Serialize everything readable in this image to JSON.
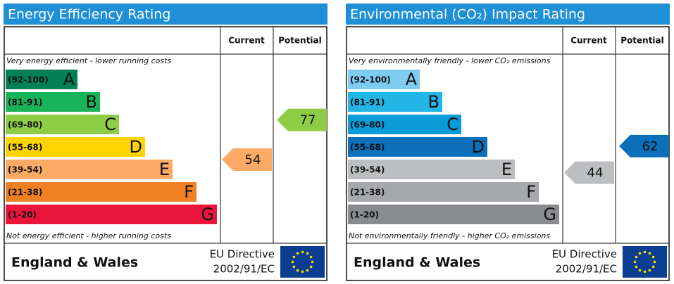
{
  "panels": [
    {
      "title": "Energy Efficiency Rating",
      "headers": [
        "Current",
        "Potential"
      ],
      "top_note": "Very energy efficient - lower running costs",
      "bottom_note": "Not energy efficient - higher running costs",
      "bands": [
        {
          "range": "(92-100)",
          "letter": "A",
          "color": "#008054"
        },
        {
          "range": "(81-91)",
          "letter": "B",
          "color": "#19b459"
        },
        {
          "range": "(69-80)",
          "letter": "C",
          "color": "#8dce46"
        },
        {
          "range": "(55-68)",
          "letter": "D",
          "color": "#ffd500"
        },
        {
          "range": "(39-54)",
          "letter": "E",
          "color": "#fcaa65"
        },
        {
          "range": "(21-38)",
          "letter": "F",
          "color": "#ef8023"
        },
        {
          "range": "(1-20)",
          "letter": "G",
          "color": "#e9153b"
        }
      ],
      "current": 54,
      "potential": 77,
      "region": "England & Wales",
      "directive": [
        "EU Directive",
        "2002/91/EC"
      ]
    },
    {
      "title": "Environmental (CO₂) Impact Rating",
      "headers": [
        "Current",
        "Potential"
      ],
      "top_note": "Very environmentally friendly - lower CO₂ emissions",
      "bottom_note": "Not environmentally friendly - higher CO₂ emissions",
      "bands": [
        {
          "range": "(92-100)",
          "letter": "A",
          "color": "#7dcdf3"
        },
        {
          "range": "(81-91)",
          "letter": "B",
          "color": "#22b5e6"
        },
        {
          "range": "(69-80)",
          "letter": "C",
          "color": "#0a9bd8"
        },
        {
          "range": "(55-68)",
          "letter": "D",
          "color": "#0b6fba"
        },
        {
          "range": "(39-54)",
          "letter": "E",
          "color": "#bcbec0"
        },
        {
          "range": "(21-38)",
          "letter": "F",
          "color": "#a6a8ab"
        },
        {
          "range": "(1-20)",
          "letter": "G",
          "color": "#898b8e"
        }
      ],
      "current": 44,
      "potential": 62,
      "region": "England & Wales",
      "directive": [
        "EU Directive",
        "2002/91/EC"
      ]
    }
  ]
}
